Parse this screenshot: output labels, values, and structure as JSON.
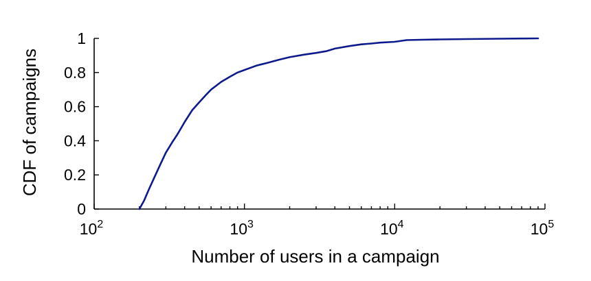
{
  "chart_data": {
    "type": "line",
    "title": "",
    "xlabel": "Number of users in a campaign",
    "ylabel": "CDF of campaigns",
    "xscale": "log",
    "xlim": [
      100,
      100000
    ],
    "ylim": [
      0,
      1
    ],
    "grid": false,
    "legend": "none",
    "x_ticks": [
      {
        "value": 100,
        "base": "10",
        "exp": "2"
      },
      {
        "value": 1000,
        "base": "10",
        "exp": "3"
      },
      {
        "value": 10000,
        "base": "10",
        "exp": "4"
      },
      {
        "value": 100000,
        "base": "10",
        "exp": "5"
      }
    ],
    "y_ticks": [
      {
        "value": 0,
        "label": "0"
      },
      {
        "value": 0.2,
        "label": "0.2"
      },
      {
        "value": 0.4,
        "label": "0.4"
      },
      {
        "value": 0.6,
        "label": "0.6"
      },
      {
        "value": 0.8,
        "label": "0.8"
      },
      {
        "value": 1,
        "label": "1"
      }
    ],
    "series": [
      {
        "color": "#0d1a8c",
        "x": [
          200,
          215,
          230,
          250,
          275,
          300,
          330,
          360,
          400,
          450,
          500,
          550,
          600,
          700,
          800,
          900,
          1000,
          1200,
          1400,
          1700,
          2000,
          2500,
          3000,
          3500,
          4000,
          5000,
          6000,
          7000,
          8000,
          10000,
          12000,
          15000,
          20000,
          30000,
          50000,
          70000,
          90000
        ],
        "y": [
          0.0,
          0.05,
          0.11,
          0.18,
          0.26,
          0.33,
          0.39,
          0.44,
          0.51,
          0.58,
          0.625,
          0.665,
          0.7,
          0.745,
          0.775,
          0.8,
          0.815,
          0.84,
          0.855,
          0.875,
          0.89,
          0.905,
          0.915,
          0.925,
          0.94,
          0.955,
          0.965,
          0.97,
          0.975,
          0.98,
          0.99,
          0.992,
          0.994,
          0.996,
          0.998,
          0.999,
          1.0
        ]
      }
    ]
  }
}
